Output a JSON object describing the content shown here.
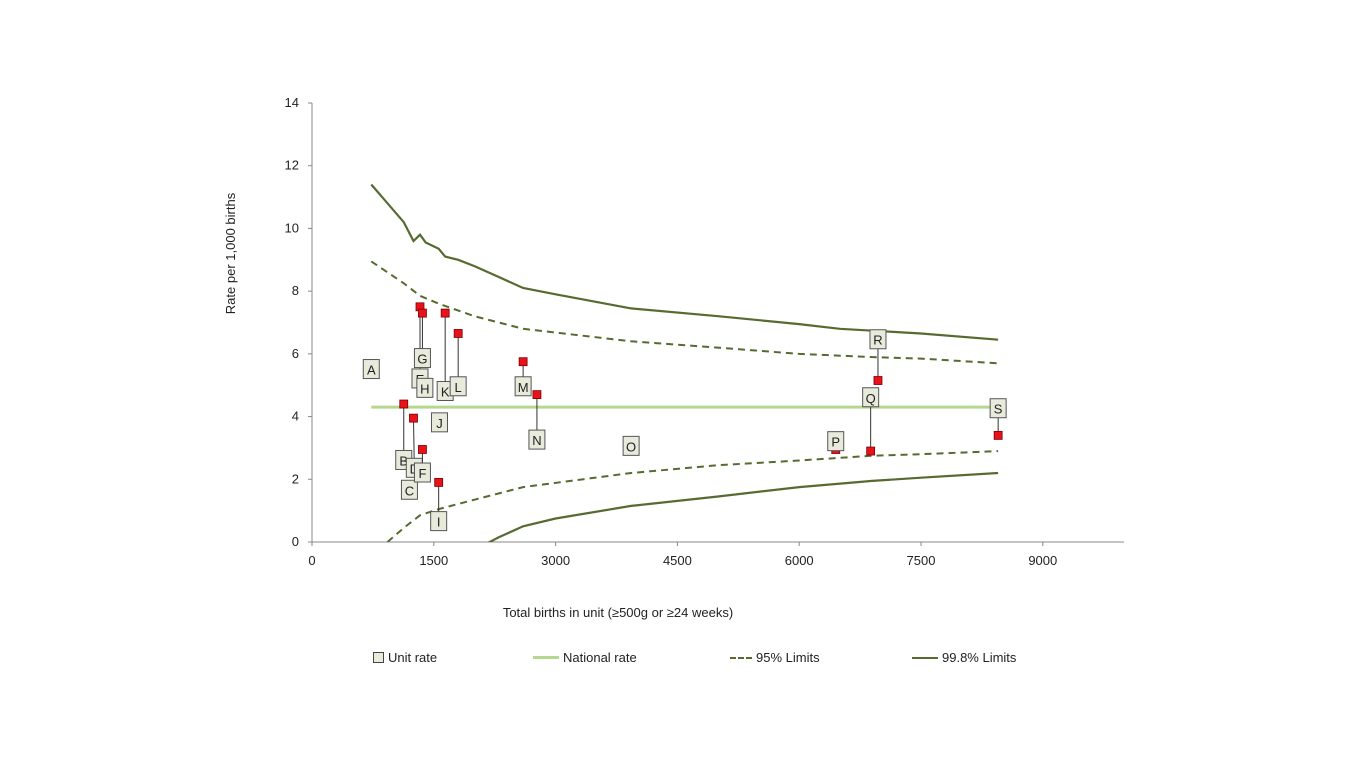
{
  "chart_data": {
    "type": "scatter",
    "title": "",
    "xlabel": "Total births in unit (≥500g or ≥24 weeks)",
    "ylabel": "Rate per 1,000 births",
    "xlim": [
      0,
      10000
    ],
    "ylim": [
      0,
      14
    ],
    "x_ticks": [
      0,
      1500,
      3000,
      4500,
      6000,
      7500,
      9000
    ],
    "y_ticks": [
      0,
      2,
      4,
      6,
      8,
      10,
      12,
      14
    ],
    "national_rate": 4.3,
    "units": [
      {
        "label": "A",
        "x": 730,
        "y": 5.5,
        "label_x": 730,
        "label_y": 5.5
      },
      {
        "label": "B",
        "x": 1130,
        "y": 4.4,
        "label_x": 1130,
        "label_y": 2.6
      },
      {
        "label": "C",
        "x": 1200,
        "y": 1.65,
        "label_x": 1200,
        "label_y": 1.65
      },
      {
        "label": "D",
        "x": 1250,
        "y": 3.95,
        "label_x": 1260,
        "label_y": 2.35
      },
      {
        "label": "E",
        "x": 1330,
        "y": 7.5,
        "label_x": 1330,
        "label_y": 5.2
      },
      {
        "label": "F",
        "x": 1360,
        "y": 2.95,
        "label_x": 1360,
        "label_y": 2.2
      },
      {
        "label": "G",
        "x": 1360,
        "y": 7.3,
        "label_x": 1360,
        "label_y": 5.85
      },
      {
        "label": "H",
        "x": 1390,
        "y": 4.9,
        "label_x": 1390,
        "label_y": 4.9
      },
      {
        "label": "I",
        "x": 1560,
        "y": 1.9,
        "label_x": 1560,
        "label_y": 0.65
      },
      {
        "label": "J",
        "x": 1570,
        "y": 3.8,
        "label_x": 1570,
        "label_y": 3.8
      },
      {
        "label": "K",
        "x": 1640,
        "y": 7.3,
        "label_x": 1640,
        "label_y": 4.8
      },
      {
        "label": "L",
        "x": 1800,
        "y": 6.65,
        "label_x": 1800,
        "label_y": 4.95
      },
      {
        "label": "M",
        "x": 2600,
        "y": 5.75,
        "label_x": 2600,
        "label_y": 4.95
      },
      {
        "label": "N",
        "x": 2770,
        "y": 4.7,
        "label_x": 2770,
        "label_y": 3.25
      },
      {
        "label": "O",
        "x": 3930,
        "y": 3.05,
        "label_x": 3930,
        "label_y": 3.05
      },
      {
        "label": "P",
        "x": 6450,
        "y": 2.95,
        "label_x": 6450,
        "label_y": 3.2
      },
      {
        "label": "Q",
        "x": 6880,
        "y": 2.9,
        "label_x": 6880,
        "label_y": 4.6
      },
      {
        "label": "R",
        "x": 6970,
        "y": 5.15,
        "label_x": 6970,
        "label_y": 6.45
      },
      {
        "label": "S",
        "x": 8450,
        "y": 3.4,
        "label_x": 8450,
        "label_y": 4.25
      }
    ],
    "limits_998": {
      "upper": [
        [
          730,
          11.4
        ],
        [
          1130,
          10.2
        ],
        [
          1250,
          9.6
        ],
        [
          1330,
          9.8
        ],
        [
          1400,
          9.55
        ],
        [
          1560,
          9.35
        ],
        [
          1640,
          9.1
        ],
        [
          1800,
          9.0
        ],
        [
          2000,
          8.8
        ],
        [
          2300,
          8.45
        ],
        [
          2600,
          8.1
        ],
        [
          3000,
          7.9
        ],
        [
          3930,
          7.45
        ],
        [
          5000,
          7.2
        ],
        [
          6000,
          6.95
        ],
        [
          6500,
          6.8
        ],
        [
          7500,
          6.65
        ],
        [
          8450,
          6.45
        ]
      ],
      "lower": [
        [
          2150,
          -0.05
        ],
        [
          2300,
          0.15
        ],
        [
          2600,
          0.5
        ],
        [
          3000,
          0.75
        ],
        [
          3930,
          1.15
        ],
        [
          5000,
          1.45
        ],
        [
          6000,
          1.75
        ],
        [
          6900,
          1.95
        ],
        [
          7500,
          2.05
        ],
        [
          8450,
          2.2
        ]
      ]
    },
    "limits_95": {
      "upper": [
        [
          730,
          8.95
        ],
        [
          1130,
          8.25
        ],
        [
          1330,
          7.85
        ],
        [
          1560,
          7.6
        ],
        [
          2000,
          7.2
        ],
        [
          2600,
          6.8
        ],
        [
          3930,
          6.4
        ],
        [
          5000,
          6.2
        ],
        [
          6000,
          6.0
        ],
        [
          6880,
          5.9
        ],
        [
          7500,
          5.85
        ],
        [
          8450,
          5.7
        ]
      ],
      "lower": [
        [
          930,
          0.0
        ],
        [
          1130,
          0.45
        ],
        [
          1330,
          0.85
        ],
        [
          1560,
          1.05
        ],
        [
          2000,
          1.35
        ],
        [
          2600,
          1.75
        ],
        [
          3930,
          2.2
        ],
        [
          5000,
          2.45
        ],
        [
          6000,
          2.6
        ],
        [
          6880,
          2.75
        ],
        [
          7500,
          2.8
        ],
        [
          8450,
          2.9
        ]
      ]
    },
    "legend": {
      "unit_rate": "Unit rate",
      "national_rate": "National rate",
      "limits_95": "95% Limits",
      "limits_998": "99.8% Limits",
      "placement": "bottom"
    },
    "colors": {
      "limit_line": "#556b2f",
      "national_line": "#b5d88f",
      "marker": "#e8121a",
      "label_bg": "#e8eadc"
    }
  }
}
